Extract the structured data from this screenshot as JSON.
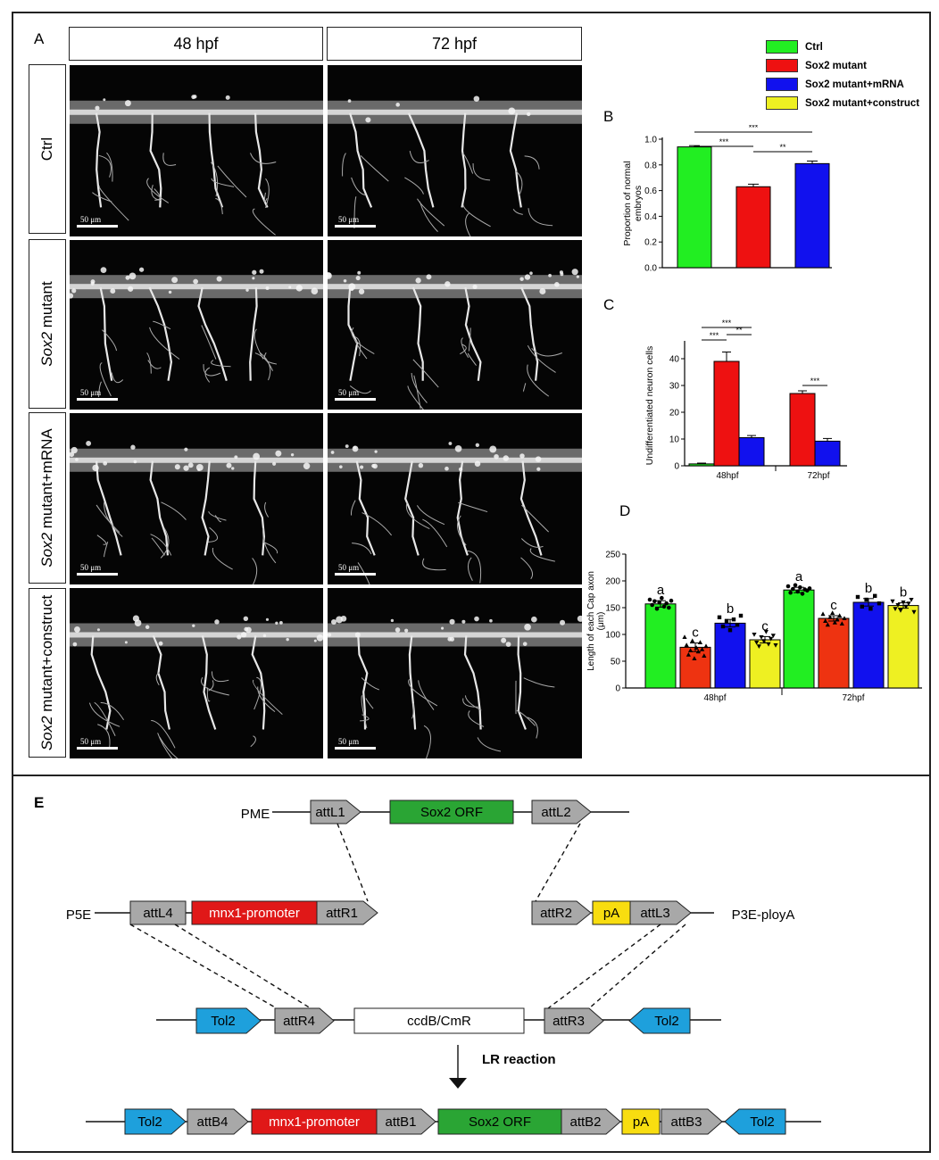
{
  "panel_labels": {
    "a": "A",
    "b": "B",
    "c": "C",
    "d": "D",
    "e": "E"
  },
  "columns": [
    "48 hpf",
    "72 hpf"
  ],
  "rows": [
    {
      "prefix": "",
      "italic": "",
      "suffix": "Ctrl"
    },
    {
      "prefix": "",
      "italic": "Sox2",
      "suffix": " mutant"
    },
    {
      "prefix": "",
      "italic": "Sox2",
      "suffix": " mutant+mRNA"
    },
    {
      "prefix": "",
      "italic": "Sox2",
      "suffix": " mutant+construct"
    }
  ],
  "scale_bar": "50 μm",
  "legend": [
    {
      "label": "Ctrl",
      "color": "#22ee22"
    },
    {
      "label": "Sox2 mutant",
      "color": "#ee1111"
    },
    {
      "label": "Sox2 mutant+mRNA",
      "color": "#1111ee"
    },
    {
      "label": "Sox2 mutant+construct",
      "color": "#eef022"
    }
  ],
  "chart_data": [
    {
      "id": "B",
      "type": "bar",
      "categories": [
        "Ctrl",
        "Sox2 mutant",
        "Sox2 mutant+mRNA"
      ],
      "values": [
        0.94,
        0.63,
        0.81
      ],
      "errors": [
        0.01,
        0.02,
        0.02
      ],
      "colors": [
        "#22ee22",
        "#ee1111",
        "#1111ee"
      ],
      "ylabel_lines": [
        "Proportion of normal",
        "embryos"
      ],
      "ylim": [
        0,
        1.0
      ],
      "yticks": [
        0.0,
        0.2,
        0.4,
        0.6,
        0.8,
        1.0
      ],
      "ytick_labels": [
        "0.0",
        "0.2",
        "0.4",
        "0.6",
        "0.8",
        "1.0"
      ],
      "significance": [
        {
          "from": 0,
          "to": 1,
          "label": "***"
        },
        {
          "from": 0,
          "to": 2,
          "label": "***"
        },
        {
          "from": 1,
          "to": 2,
          "label": "**"
        }
      ]
    },
    {
      "id": "C",
      "type": "bar",
      "categories": [
        "48hpf",
        "72hpf"
      ],
      "series": [
        {
          "color": "#22ee22",
          "values": [
            0.7,
            null
          ],
          "errors": [
            0.3,
            null
          ]
        },
        {
          "color": "#ee1111",
          "values": [
            39,
            27
          ],
          "errors": [
            3.5,
            1.0
          ]
        },
        {
          "color": "#1111ee",
          "values": [
            10.5,
            9.2
          ],
          "errors": [
            0.8,
            1.0
          ]
        }
      ],
      "ylabel": "Undifferentiated neuron cells",
      "ylim": [
        0,
        45
      ],
      "yticks": [
        0,
        10,
        20,
        30,
        40
      ],
      "ytick_labels": [
        "0",
        "10",
        "20",
        "30",
        "40"
      ],
      "significance": [
        {
          "group": 0,
          "from": 0,
          "to": 1,
          "label": "***"
        },
        {
          "group": 0,
          "from": 0,
          "to": 2,
          "label": "***"
        },
        {
          "group": 0,
          "from": 1,
          "to": 2,
          "label": "**"
        },
        {
          "group": 1,
          "from": 1,
          "to": 2,
          "label": "***"
        }
      ]
    },
    {
      "id": "D",
      "type": "bar",
      "categories": [
        "48hpf",
        "72hpf"
      ],
      "series": [
        {
          "name": "Ctrl",
          "color": "#22ee22",
          "values": [
            157,
            183
          ],
          "errors": [
            6,
            5
          ],
          "letters": [
            "a",
            "a"
          ],
          "marker": "circle",
          "points": [
            [
              165,
              155,
              162,
              148,
              160,
              168,
              152,
              158,
              150,
              163
            ],
            [
              190,
              178,
              185,
              192,
              180,
              188,
              176,
              184,
              182,
              186
            ]
          ]
        },
        {
          "name": "Sox2 mutant",
          "color": "#ee3311",
          "values": [
            76,
            130
          ],
          "errors": [
            8,
            5
          ],
          "letters": [
            "c",
            "c"
          ],
          "marker": "triangle",
          "points": [
            [
              95,
              80,
              62,
              70,
              88,
              55,
              75,
              68,
              85,
              72,
              60,
              78
            ],
            [
              138,
              125,
              118,
              132,
              140,
              122,
              128,
              135,
              120,
              130
            ]
          ]
        },
        {
          "name": "Sox2 mutant+mRNA",
          "color": "#1111ee",
          "values": [
            121,
            160
          ],
          "errors": [
            7,
            7
          ],
          "letters": [
            "b",
            "b"
          ],
          "marker": "square",
          "points": [
            [
              132,
              115,
              125,
              108,
              128,
              118,
              135
            ],
            [
              170,
              152,
              165,
              148,
              172,
              158
            ]
          ]
        },
        {
          "name": "Sox2 mutant+construct",
          "color": "#eef022",
          "values": [
            90,
            154
          ],
          "errors": [
            6,
            5
          ],
          "letters": [
            "c",
            "b"
          ],
          "marker": "triangle-down",
          "points": [
            [
              100,
              85,
              78,
              95,
              88,
              105,
              82,
              92,
              98,
              80
            ],
            [
              162,
              148,
              155,
              145,
              160,
              152,
              158,
              165,
              142
            ]
          ]
        }
      ],
      "ylabel_lines": [
        "Length of each Cap axon",
        "(μm)"
      ],
      "ylim": [
        0,
        250
      ],
      "yticks": [
        0,
        50,
        100,
        150,
        200,
        250
      ],
      "ytick_labels": [
        "0",
        "50",
        "100",
        "150",
        "200",
        "250"
      ]
    }
  ],
  "diagram": {
    "pme": {
      "label": "PME",
      "l1": "attL1",
      "orf": "Sox2 ORF",
      "l2": "attL2"
    },
    "p5e": {
      "label": "P5E",
      "l4": "attL4",
      "promoter": "mnx1-promoter",
      "r1": "attR1"
    },
    "p3e": {
      "label": "P3E-ployA",
      "r2": "attR2",
      "pa": "pA",
      "l3": "attL3"
    },
    "dest": {
      "tol2a": "Tol2",
      "r4": "attR4",
      "ccdb": "ccdB/CmR",
      "r3": "attR3",
      "tol2b": "Tol2"
    },
    "reaction": "LR reaction",
    "final": {
      "tol2a": "Tol2",
      "b4": "attB4",
      "promoter": "mnx1-promoter",
      "b1": "attB1",
      "orf": "Sox2 ORF",
      "b2": "attB2",
      "pa": "pA",
      "b3": "attB3",
      "tol2b": "Tol2"
    },
    "colors": {
      "grey": "#a8a8a8",
      "green": "#2aa534",
      "red": "#e01818",
      "yellow": "#f8dd10",
      "blue": "#1ea0dc"
    }
  }
}
